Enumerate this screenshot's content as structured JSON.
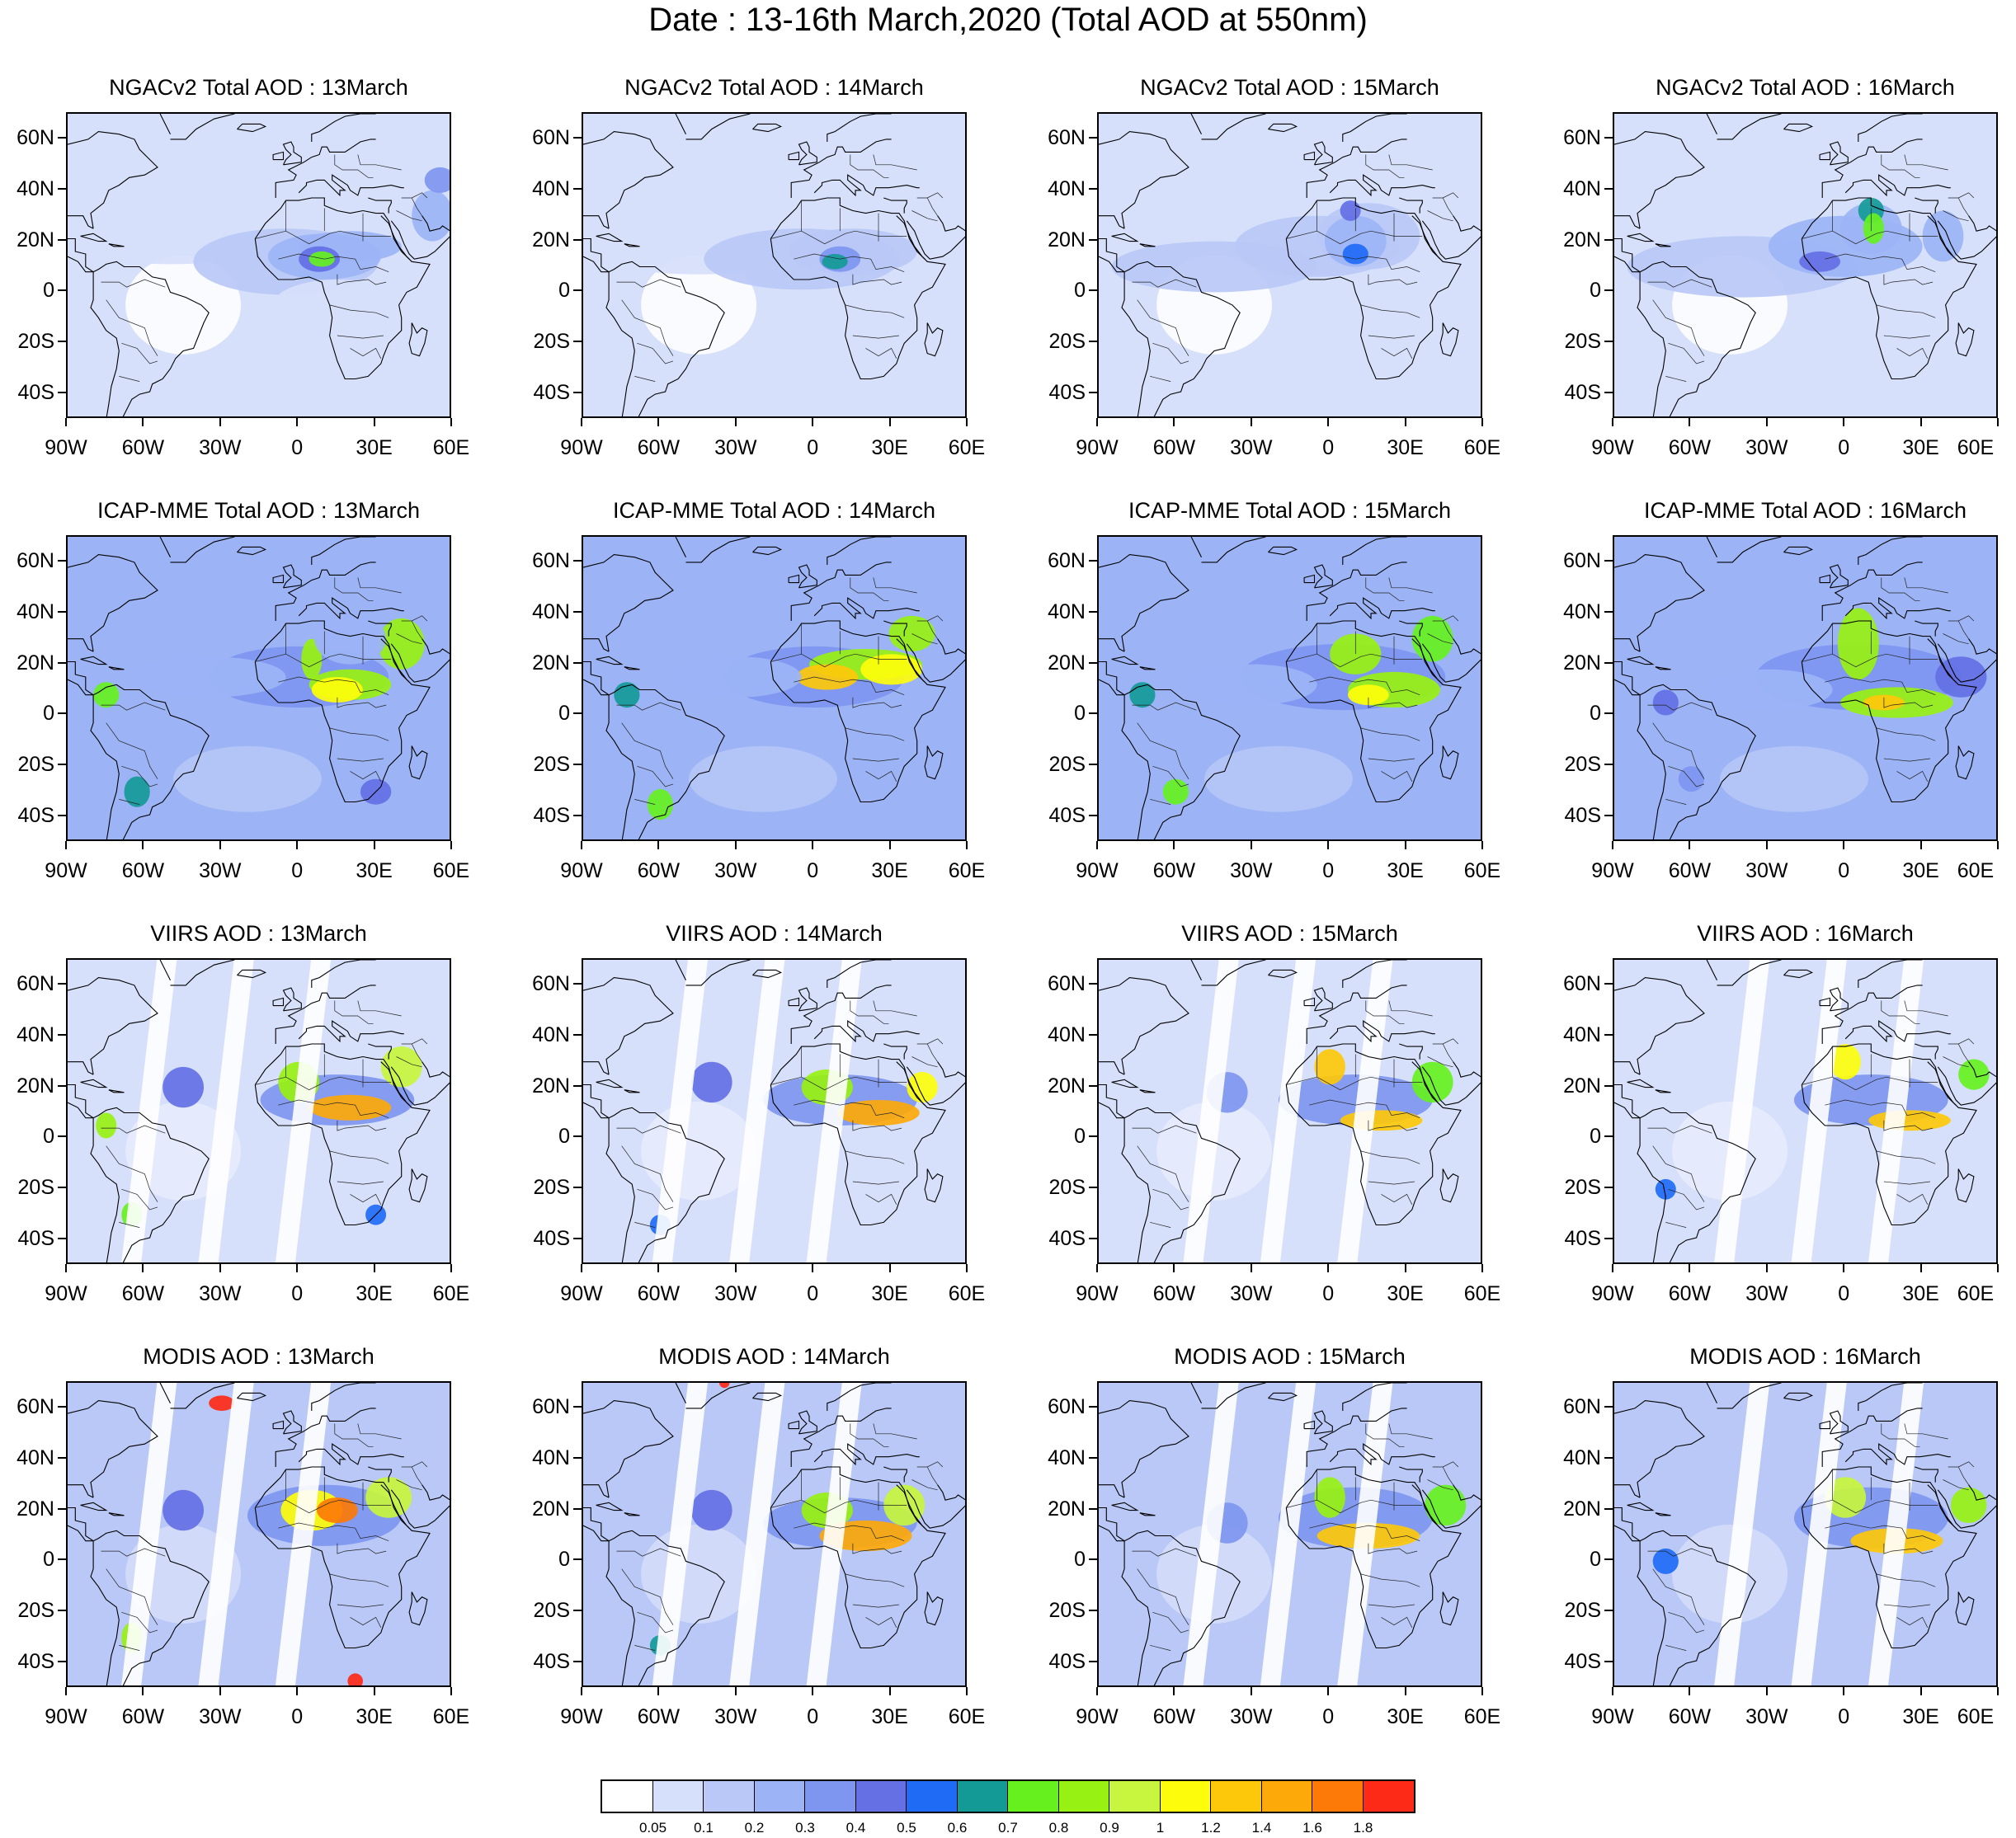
{
  "figure_title": "Date : 13-16th March,2020 (Total AOD at 550nm)",
  "panels": [
    {
      "title": "NGACv2 Total AOD : 13March",
      "model": "NGACv2",
      "date": "13March"
    },
    {
      "title": "NGACv2 Total AOD : 14March",
      "model": "NGACv2",
      "date": "14March"
    },
    {
      "title": "NGACv2 Total AOD : 15March",
      "model": "NGACv2",
      "date": "15March"
    },
    {
      "title": "NGACv2 Total AOD : 16March",
      "model": "NGACv2",
      "date": "16March"
    },
    {
      "title": "ICAP-MME Total AOD : 13March",
      "model": "ICAP-MME",
      "date": "13March"
    },
    {
      "title": "ICAP-MME Total AOD : 14March",
      "model": "ICAP-MME",
      "date": "14March"
    },
    {
      "title": "ICAP-MME Total AOD : 15March",
      "model": "ICAP-MME",
      "date": "15March"
    },
    {
      "title": "ICAP-MME Total AOD : 16March",
      "model": "ICAP-MME",
      "date": "16March"
    },
    {
      "title": "VIIRS AOD : 13March",
      "model": "VIIRS",
      "date": "13March"
    },
    {
      "title": "VIIRS AOD : 14March",
      "model": "VIIRS",
      "date": "14March"
    },
    {
      "title": "VIIRS AOD : 15March",
      "model": "VIIRS",
      "date": "15March"
    },
    {
      "title": "VIIRS AOD : 16March",
      "model": "VIIRS",
      "date": "16March"
    },
    {
      "title": "MODIS AOD : 13March",
      "model": "MODIS",
      "date": "13March"
    },
    {
      "title": "MODIS AOD : 14March",
      "model": "MODIS",
      "date": "14March"
    },
    {
      "title": "MODIS AOD : 15March",
      "model": "MODIS",
      "date": "15March"
    },
    {
      "title": "MODIS AOD : 16March",
      "model": "MODIS",
      "date": "16March"
    }
  ],
  "map_extent": {
    "lon_min": -90,
    "lon_max": 60,
    "lat_min": -50,
    "lat_max": 70
  },
  "lat_ticks": [
    {
      "value": 60,
      "label": "60N"
    },
    {
      "value": 40,
      "label": "40N"
    },
    {
      "value": 20,
      "label": "20N"
    },
    {
      "value": 0,
      "label": "0"
    },
    {
      "value": -20,
      "label": "20S"
    },
    {
      "value": -40,
      "label": "40S"
    }
  ],
  "lon_ticks": [
    {
      "value": -90,
      "label": "90W"
    },
    {
      "value": -60,
      "label": "60W"
    },
    {
      "value": -30,
      "label": "30W"
    },
    {
      "value": 0,
      "label": "0"
    },
    {
      "value": 30,
      "label": "30E"
    },
    {
      "value": 60,
      "label": "60E"
    }
  ],
  "colorbar": {
    "colors": [
      "#ffffff",
      "#d7e0fb",
      "#b9c8f6",
      "#9cb4f6",
      "#7e96f0",
      "#6470e4",
      "#1f6bf6",
      "#139a97",
      "#66f11f",
      "#97f112",
      "#c8f53d",
      "#fdfd0b",
      "#fdc80a",
      "#fda90a",
      "#fd7a08",
      "#fd2a17"
    ],
    "levels": [
      "0.05",
      "0.1",
      "0.2",
      "0.3",
      "0.4",
      "0.5",
      "0.6",
      "0.7",
      "0.8",
      "0.9",
      "1",
      "1.2",
      "1.4",
      "1.6",
      "1.8"
    ]
  }
}
